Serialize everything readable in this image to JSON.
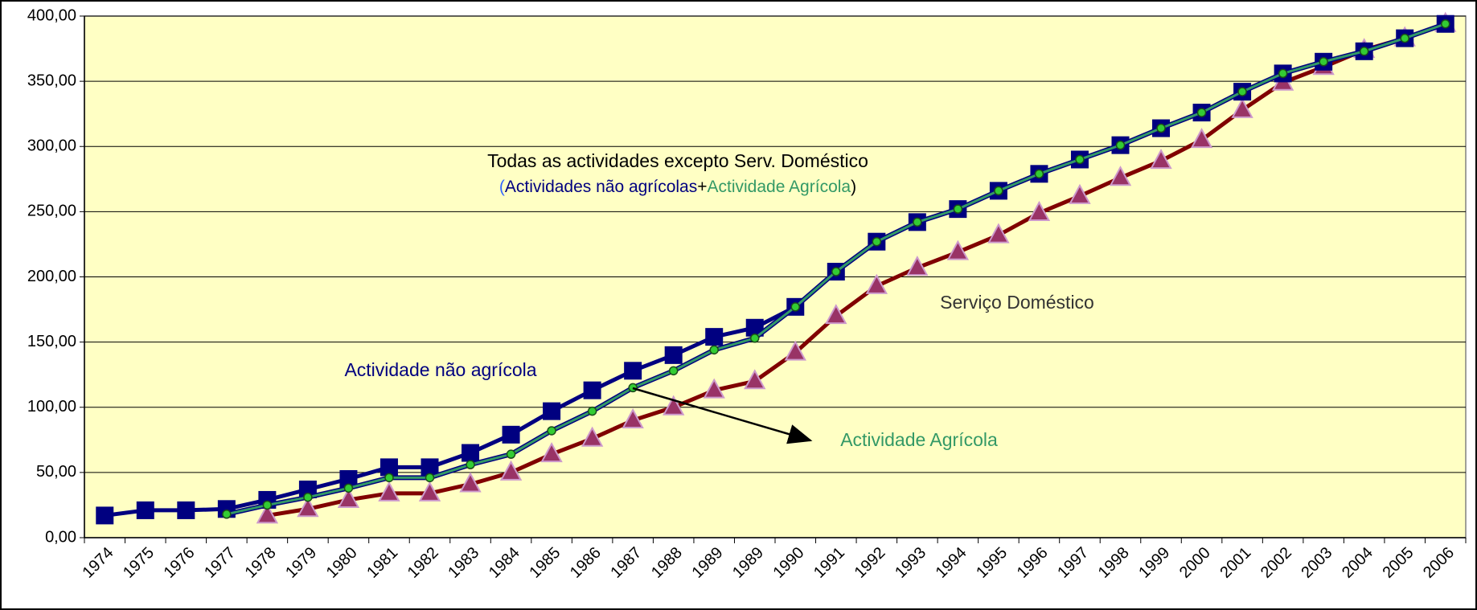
{
  "chart_data": {
    "type": "line",
    "categories": [
      "1974",
      "1975",
      "1976",
      "1977",
      "1978",
      "1979",
      "1980",
      "1981",
      "1982",
      "1983",
      "1984",
      "1985",
      "1986",
      "1987",
      "1988",
      "1989",
      "1989",
      "1990",
      "1991",
      "1992",
      "1993",
      "1994",
      "1995",
      "1996",
      "1997",
      "1998",
      "1999",
      "2000",
      "2001",
      "2002",
      "2003",
      "2004",
      "2005",
      "2006"
    ],
    "series": [
      {
        "name": "Actividade não agrícola",
        "color": "#000080",
        "marker": "square",
        "values": [
          17,
          21,
          21,
          22,
          29,
          37,
          45,
          54,
          54,
          65,
          79,
          97,
          113,
          128,
          140,
          154,
          161,
          177,
          204,
          227,
          242,
          252,
          266,
          279,
          290,
          301,
          314,
          326,
          342,
          356,
          365,
          373,
          383,
          394
        ]
      },
      {
        "name": "Actividade Agrícola",
        "color": "#339966",
        "marker": "circle",
        "values": [
          null,
          null,
          null,
          18,
          25,
          31,
          38,
          46,
          46,
          56,
          64,
          82,
          97,
          115,
          128,
          144,
          153,
          177,
          204,
          227,
          242,
          252,
          266,
          279,
          290,
          301,
          314,
          326,
          342,
          356,
          365,
          373,
          383,
          394
        ]
      },
      {
        "name": "Serviço Doméstico",
        "color": "#800000",
        "marker": "triangle",
        "values": [
          null,
          null,
          null,
          null,
          17,
          22,
          29,
          34,
          34,
          41,
          50,
          64,
          76,
          90,
          100,
          113,
          120,
          142,
          170,
          193,
          207,
          219,
          232,
          249,
          262,
          276,
          289,
          305,
          328,
          349,
          361,
          374,
          383,
          394
        ]
      }
    ],
    "annotation": {
      "title": "Todas as actividades excepto Serv. Doméstico",
      "parts": [
        "(",
        "Actividades não agrícolas",
        "+",
        "Actividade Agrícola",
        ")"
      ]
    },
    "ylim": [
      0,
      400
    ],
    "yticks": [
      {
        "value": 0,
        "label": "0,00"
      },
      {
        "value": 50,
        "label": "50,00"
      },
      {
        "value": 100,
        "label": "100,00"
      },
      {
        "value": 150,
        "label": "150,00"
      },
      {
        "value": 200,
        "label": "200,00"
      },
      {
        "value": 250,
        "label": "250,00"
      },
      {
        "value": 300,
        "label": "300,00"
      },
      {
        "value": 350,
        "label": "350,00"
      },
      {
        "value": 400,
        "label": "400,00"
      }
    ],
    "grid": true,
    "background": "#ffffc4"
  }
}
